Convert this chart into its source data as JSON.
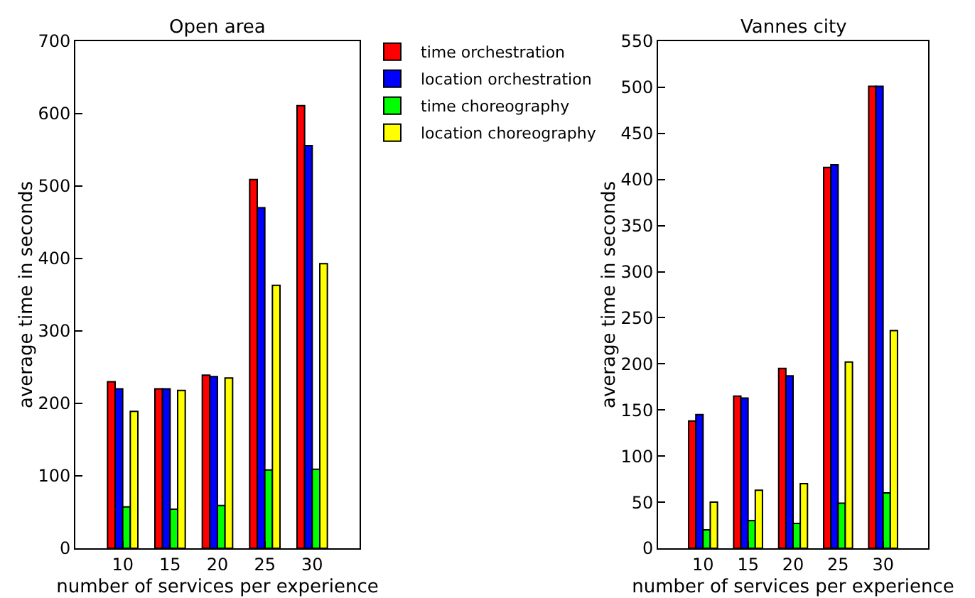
{
  "chart_data": [
    {
      "type": "bar",
      "title": "Open area",
      "xlabel": "number of services per experience",
      "ylabel": "average time in seconds",
      "x": [
        10,
        15,
        20,
        25,
        30
      ],
      "xlim": [
        5,
        35
      ],
      "xticks": [
        10,
        15,
        20,
        25,
        30
      ],
      "ylim": [
        0,
        700
      ],
      "yticks": [
        0,
        100,
        200,
        300,
        400,
        500,
        600,
        700
      ],
      "legend": "top right",
      "series": [
        {
          "name": "time orchestration",
          "color": "#ff0000",
          "values": [
            230,
            220,
            239,
            509,
            611
          ]
        },
        {
          "name": "location orchestration",
          "color": "#0000ff",
          "values": [
            220,
            220,
            237,
            470,
            556
          ]
        },
        {
          "name": "time choreography",
          "color": "#00ff00",
          "values": [
            57,
            54,
            59,
            108,
            109
          ]
        },
        {
          "name": "location choreography",
          "color": "#ffff00",
          "values": [
            189,
            218,
            235,
            363,
            393
          ]
        }
      ]
    },
    {
      "type": "bar",
      "title": "Vannes city",
      "xlabel": "number of services per experience",
      "ylabel": "average time in seconds",
      "x": [
        10,
        15,
        20,
        25,
        30
      ],
      "xlim": [
        5,
        35
      ],
      "xticks": [
        10,
        15,
        20,
        25,
        30
      ],
      "ylim": [
        0,
        550
      ],
      "yticks": [
        0,
        50,
        100,
        150,
        200,
        250,
        300,
        350,
        400,
        450,
        500,
        550
      ],
      "series": [
        {
          "color": "#ff0000",
          "values": [
            138,
            165,
            195,
            413,
            501
          ]
        },
        {
          "color": "#0000ff",
          "values": [
            145,
            163,
            187,
            416,
            501
          ]
        },
        {
          "color": "#00ff00",
          "values": [
            20,
            30,
            27,
            49,
            60
          ]
        },
        {
          "color": "#ffff00",
          "values": [
            50,
            63,
            70,
            202,
            236
          ]
        }
      ]
    }
  ]
}
